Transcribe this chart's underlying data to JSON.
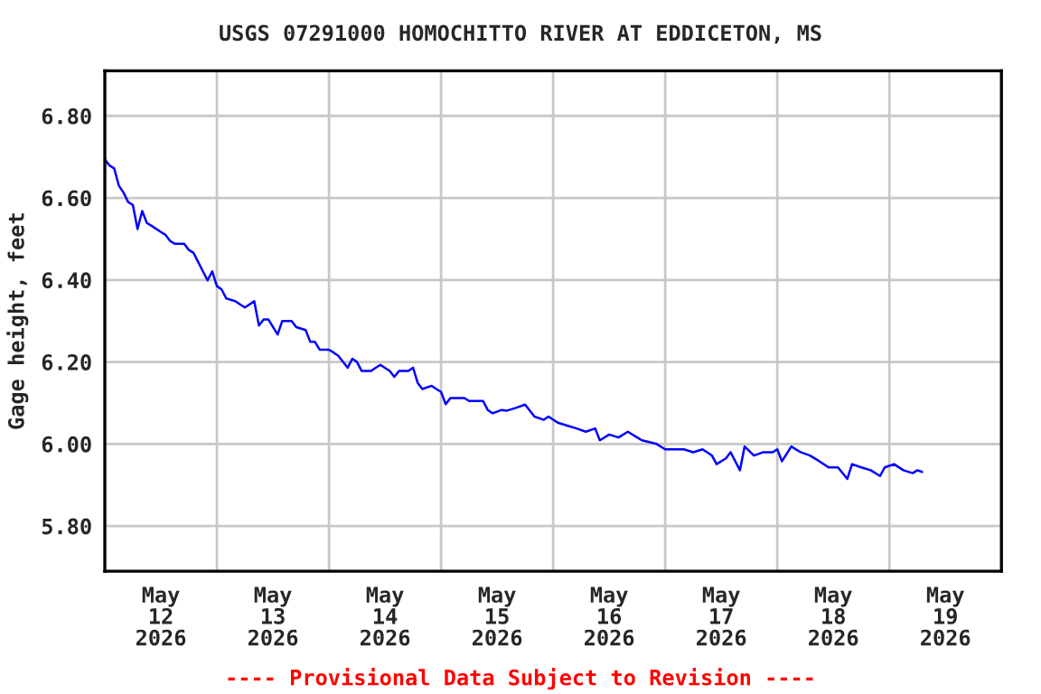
{
  "chart_data": {
    "type": "line",
    "title": "USGS 07291000 HOMOCHITTO RIVER AT EDDICETON, MS",
    "ylabel": "Gage height, feet",
    "annotations": [
      "---- Provisional Data Subject to Revision ----"
    ],
    "x": [
      "2026-05-12T00:00",
      "2026-05-12T01:00",
      "2026-05-12T02:00",
      "2026-05-12T03:00",
      "2026-05-12T04:00",
      "2026-05-12T05:00",
      "2026-05-12T06:00",
      "2026-05-12T07:00",
      "2026-05-12T08:00",
      "2026-05-12T09:00",
      "2026-05-12T10:00",
      "2026-05-12T12:00",
      "2026-05-12T13:00",
      "2026-05-12T14:00",
      "2026-05-12T15:00",
      "2026-05-12T17:00",
      "2026-05-12T18:00",
      "2026-05-12T19:00",
      "2026-05-12T21:00",
      "2026-05-12T22:00",
      "2026-05-12T23:00",
      "2026-05-13T00:00",
      "2026-05-13T01:00",
      "2026-05-13T02:00",
      "2026-05-13T04:00",
      "2026-05-13T05:00",
      "2026-05-13T06:00",
      "2026-05-13T08:00",
      "2026-05-13T09:00",
      "2026-05-13T10:00",
      "2026-05-13T11:00",
      "2026-05-13T13:00",
      "2026-05-13T14:00",
      "2026-05-13T16:00",
      "2026-05-13T17:00",
      "2026-05-13T19:00",
      "2026-05-13T20:00",
      "2026-05-13T21:00",
      "2026-05-13T22:00",
      "2026-05-14T00:00",
      "2026-05-14T01:00",
      "2026-05-14T02:00",
      "2026-05-14T04:00",
      "2026-05-14T05:00",
      "2026-05-14T06:00",
      "2026-05-14T07:00",
      "2026-05-14T09:00",
      "2026-05-14T10:00",
      "2026-05-14T11:00",
      "2026-05-14T13:00",
      "2026-05-14T14:00",
      "2026-05-14T15:00",
      "2026-05-14T17:00",
      "2026-05-14T18:00",
      "2026-05-14T19:00",
      "2026-05-14T20:00",
      "2026-05-14T22:00",
      "2026-05-14T23:00",
      "2026-05-15T00:00",
      "2026-05-15T01:00",
      "2026-05-15T02:00",
      "2026-05-15T03:00",
      "2026-05-15T05:00",
      "2026-05-15T06:00",
      "2026-05-15T07:00",
      "2026-05-15T09:00",
      "2026-05-15T10:00",
      "2026-05-15T11:00",
      "2026-05-15T13:00",
      "2026-05-15T14:00",
      "2026-05-15T16:00",
      "2026-05-15T18:00",
      "2026-05-15T20:00",
      "2026-05-15T22:00",
      "2026-05-15T23:00",
      "2026-05-16T01:00",
      "2026-05-16T03:00",
      "2026-05-16T05:00",
      "2026-05-16T07:00",
      "2026-05-16T09:00",
      "2026-05-16T10:00",
      "2026-05-16T12:00",
      "2026-05-16T14:00",
      "2026-05-16T16:00",
      "2026-05-16T18:00",
      "2026-05-16T19:00",
      "2026-05-16T22:00",
      "2026-05-17T00:00",
      "2026-05-17T02:00",
      "2026-05-17T04:00",
      "2026-05-17T06:00",
      "2026-05-17T08:00",
      "2026-05-17T10:00",
      "2026-05-17T11:00",
      "2026-05-17T13:00",
      "2026-05-17T14:00",
      "2026-05-17T16:00",
      "2026-05-17T17:00",
      "2026-05-17T19:00",
      "2026-05-17T21:00",
      "2026-05-17T23:00",
      "2026-05-18T00:00",
      "2026-05-18T01:00",
      "2026-05-18T03:00",
      "2026-05-18T05:00",
      "2026-05-18T07:00",
      "2026-05-18T09:00",
      "2026-05-18T11:00",
      "2026-05-18T13:00",
      "2026-05-18T15:00",
      "2026-05-18T16:00",
      "2026-05-18T18:00",
      "2026-05-18T20:00",
      "2026-05-18T22:00",
      "2026-05-18T23:00",
      "2026-05-19T01:00",
      "2026-05-19T03:00",
      "2026-05-19T05:00",
      "2026-05-19T06:00",
      "2026-05-19T07:00"
    ],
    "series": [
      {
        "color": "#0000ff",
        "values": [
          6.694,
          6.679,
          6.672,
          6.63,
          6.613,
          6.59,
          6.583,
          6.524,
          6.568,
          6.539,
          6.532,
          6.517,
          6.51,
          6.495,
          6.488,
          6.488,
          6.473,
          6.466,
          6.421,
          6.399,
          6.421,
          6.385,
          6.377,
          6.355,
          6.348,
          6.34,
          6.333,
          6.348,
          6.289,
          6.304,
          6.304,
          6.267,
          6.3,
          6.3,
          6.285,
          6.278,
          6.249,
          6.249,
          6.23,
          6.23,
          6.223,
          6.215,
          6.186,
          6.208,
          6.2,
          6.178,
          6.178,
          6.186,
          6.193,
          6.178,
          6.164,
          6.178,
          6.178,
          6.186,
          6.149,
          6.134,
          6.142,
          6.134,
          6.127,
          6.097,
          6.112,
          6.112,
          6.112,
          6.105,
          6.105,
          6.105,
          6.083,
          6.075,
          6.083,
          6.081,
          6.088,
          6.096,
          6.067,
          6.059,
          6.067,
          6.052,
          6.045,
          6.038,
          6.03,
          6.038,
          6.009,
          6.023,
          6.016,
          6.03,
          6.016,
          6.009,
          6.001,
          5.987,
          5.987,
          5.987,
          5.98,
          5.987,
          5.972,
          5.951,
          5.965,
          5.98,
          5.936,
          5.994,
          5.972,
          5.98,
          5.98,
          5.987,
          5.958,
          5.994,
          5.98,
          5.972,
          5.958,
          5.943,
          5.943,
          5.915,
          5.951,
          5.943,
          5.936,
          5.922,
          5.943,
          5.951,
          5.936,
          5.929,
          5.936,
          5.932
        ]
      }
    ],
    "xlim": [
      "2026-05-12T00:00",
      "2026-05-20T00:00"
    ],
    "xticks": [
      {
        "value": "2026-05-12T12:00",
        "label": "May\n12\n2026"
      },
      {
        "value": "2026-05-13T00:00",
        "label": null
      },
      {
        "value": "2026-05-13T12:00",
        "label": "May\n13\n2026"
      },
      {
        "value": "2026-05-14T00:00",
        "label": null
      },
      {
        "value": "2026-05-14T12:00",
        "label": "May\n14\n2026"
      },
      {
        "value": "2026-05-15T00:00",
        "label": null
      },
      {
        "value": "2026-05-15T12:00",
        "label": "May\n15\n2026"
      },
      {
        "value": "2026-05-16T00:00",
        "label": null
      },
      {
        "value": "2026-05-16T12:00",
        "label": "May\n16\n2026"
      },
      {
        "value": "2026-05-17T00:00",
        "label": null
      },
      {
        "value": "2026-05-17T12:00",
        "label": "May\n17\n2026"
      },
      {
        "value": "2026-05-18T00:00",
        "label": null
      },
      {
        "value": "2026-05-18T12:00",
        "label": "May\n18\n2026"
      },
      {
        "value": "2026-05-19T00:00",
        "label": null
      },
      {
        "value": "2026-05-19T12:00",
        "label": "May\n19\n2026"
      }
    ],
    "ylim": [
      5.69,
      6.91
    ],
    "yticks": [
      {
        "value": 5.8,
        "label": "5.80"
      },
      {
        "value": 6.0,
        "label": "6.00"
      },
      {
        "value": 6.2,
        "label": "6.20"
      },
      {
        "value": 6.4,
        "label": "6.40"
      },
      {
        "value": 6.6,
        "label": "6.60"
      },
      {
        "value": 6.8,
        "label": "6.80"
      }
    ],
    "grid": true,
    "legend": false
  }
}
